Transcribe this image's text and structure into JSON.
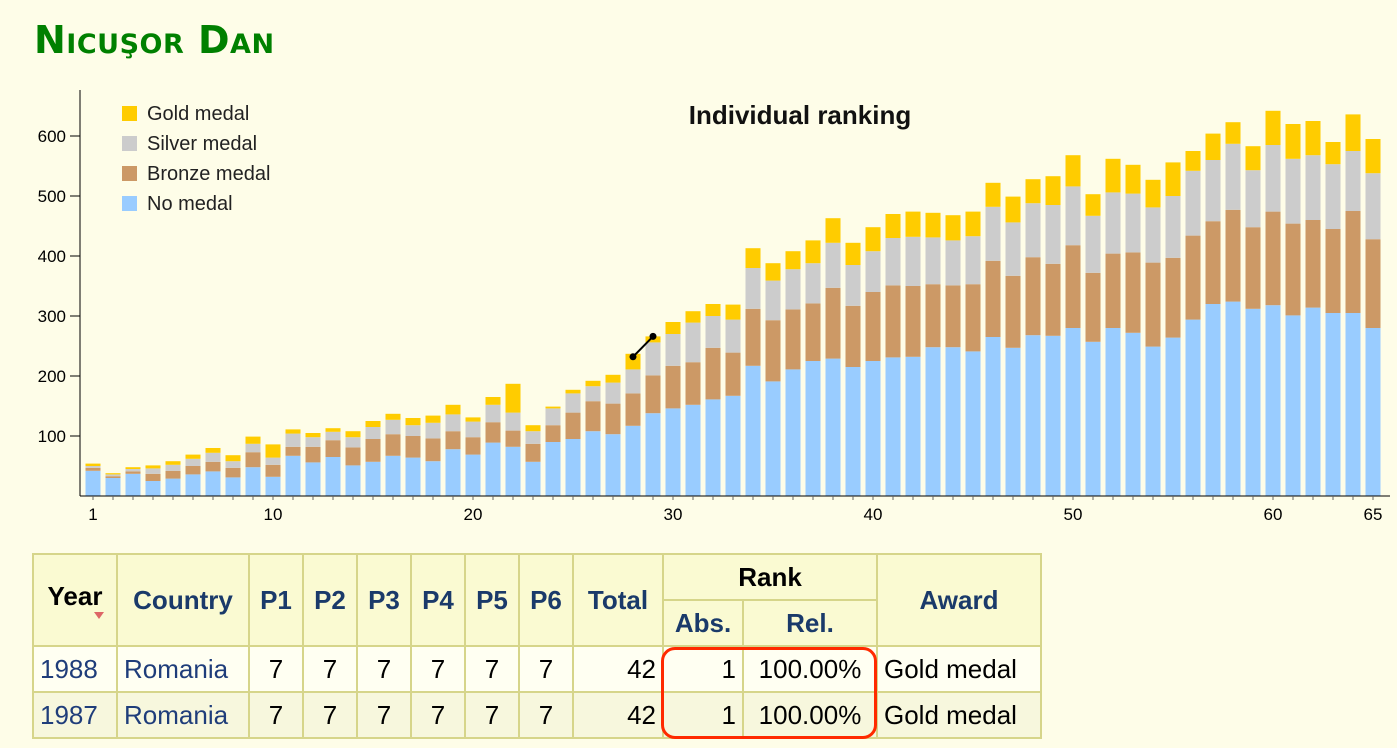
{
  "page": {
    "title": "Nicuşor Dan"
  },
  "chart_data": {
    "type": "bar",
    "stacked": true,
    "title": "Individual ranking",
    "xlabel": "",
    "ylabel": "",
    "ylim": [
      0,
      650
    ],
    "y_ticks": [
      100,
      200,
      300,
      400,
      500,
      600
    ],
    "x_tick_labels": [
      "1",
      "10",
      "20",
      "30",
      "40",
      "50",
      "60",
      "65"
    ],
    "x_tick_values": [
      1,
      10,
      20,
      30,
      40,
      50,
      60,
      65
    ],
    "legend_position": "top-left",
    "x": [
      1,
      2,
      3,
      4,
      5,
      6,
      7,
      8,
      9,
      10,
      11,
      12,
      13,
      14,
      15,
      16,
      17,
      18,
      19,
      20,
      21,
      22,
      23,
      24,
      25,
      26,
      27,
      28,
      29,
      30,
      31,
      32,
      33,
      34,
      35,
      36,
      37,
      38,
      39,
      40,
      41,
      42,
      43,
      44,
      45,
      46,
      47,
      48,
      49,
      50,
      51,
      52,
      53,
      54,
      55,
      56,
      57,
      58,
      59,
      60,
      61,
      62,
      63,
      64,
      65
    ],
    "series": [
      {
        "name": "No medal",
        "color": "#99ccff",
        "values": [
          42,
          30,
          37,
          25,
          29,
          36,
          41,
          31,
          48,
          32,
          67,
          56,
          65,
          51,
          57,
          67,
          64,
          58,
          78,
          69,
          89,
          82,
          57,
          90,
          95,
          108,
          103,
          117,
          138,
          146,
          152,
          161,
          167,
          217,
          191,
          211,
          225,
          229,
          215,
          225,
          231,
          232,
          248,
          248,
          241,
          265,
          247,
          268,
          267,
          280,
          257,
          280,
          272,
          249,
          264,
          294,
          320,
          324,
          312,
          318,
          301,
          314,
          305,
          305,
          280
        ]
      },
      {
        "name": "Bronze medal",
        "color": "#cc9966",
        "values": [
          5,
          3,
          4,
          12,
          13,
          14,
          16,
          16,
          25,
          20,
          15,
          26,
          28,
          30,
          38,
          36,
          36,
          38,
          30,
          29,
          34,
          27,
          30,
          28,
          44,
          50,
          51,
          54,
          63,
          71,
          71,
          86,
          72,
          95,
          102,
          100,
          96,
          118,
          102,
          115,
          120,
          118,
          105,
          103,
          112,
          127,
          120,
          130,
          120,
          138,
          115,
          124,
          134,
          140,
          133,
          140,
          138,
          153,
          136,
          156,
          153,
          146,
          140,
          170,
          148
        ]
      },
      {
        "name": "Silver medal",
        "color": "#cccccc",
        "values": [
          3,
          3,
          4,
          9,
          10,
          12,
          15,
          11,
          14,
          12,
          22,
          16,
          14,
          17,
          20,
          24,
          18,
          26,
          28,
          26,
          29,
          30,
          21,
          28,
          32,
          25,
          35,
          40,
          55,
          53,
          66,
          53,
          55,
          68,
          66,
          67,
          67,
          75,
          68,
          68,
          79,
          82,
          78,
          75,
          80,
          90,
          89,
          90,
          98,
          98,
          95,
          102,
          98,
          92,
          103,
          108,
          102,
          110,
          95,
          111,
          108,
          108,
          108,
          100,
          110
        ]
      },
      {
        "name": "Gold medal",
        "color": "#ffcc00",
        "values": [
          4,
          2,
          3,
          5,
          6,
          7,
          8,
          10,
          12,
          22,
          7,
          7,
          6,
          10,
          10,
          10,
          12,
          12,
          16,
          7,
          13,
          48,
          10,
          3,
          6,
          9,
          13,
          26,
          10,
          20,
          19,
          20,
          25,
          33,
          29,
          30,
          38,
          41,
          37,
          40,
          40,
          42,
          41,
          42,
          41,
          40,
          43,
          40,
          48,
          52,
          36,
          56,
          48,
          46,
          56,
          33,
          44,
          36,
          40,
          57,
          58,
          57,
          37,
          61,
          57
        ]
      }
    ],
    "annotation_points": [
      {
        "x": 28,
        "y": 232
      },
      {
        "x": 29,
        "y": 266
      }
    ]
  },
  "table": {
    "headers": {
      "year": "Year",
      "country": "Country",
      "p1": "P1",
      "p2": "P2",
      "p3": "P3",
      "p4": "P4",
      "p5": "P5",
      "p6": "P6",
      "total": "Total",
      "rank": "Rank",
      "abs": "Abs.",
      "rel": "Rel.",
      "award": "Award"
    },
    "rows": [
      {
        "year": "1988",
        "country": "Romania",
        "p1": "7",
        "p2": "7",
        "p3": "7",
        "p4": "7",
        "p5": "7",
        "p6": "7",
        "total": "42",
        "abs": "1",
        "rel": "100.00%",
        "award": "Gold medal"
      },
      {
        "year": "1987",
        "country": "Romania",
        "p1": "7",
        "p2": "7",
        "p3": "7",
        "p4": "7",
        "p5": "7",
        "p6": "7",
        "total": "42",
        "abs": "1",
        "rel": "100.00%",
        "award": "Gold medal"
      }
    ]
  }
}
